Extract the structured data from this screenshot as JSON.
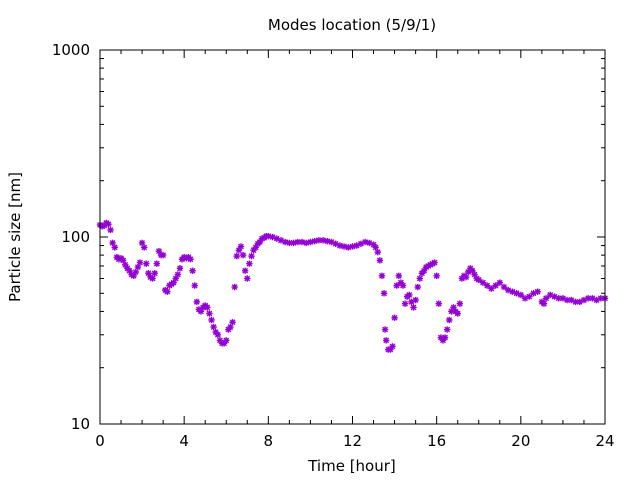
{
  "chart_data": {
    "type": "scatter",
    "title": "Modes location (5/9/1)",
    "xlabel": "Time [hour]",
    "ylabel": "Particle size [nm]",
    "xlim": [
      0,
      24
    ],
    "ylim": [
      10,
      1000
    ],
    "yscale": "log",
    "xticks": [
      0,
      4,
      8,
      12,
      16,
      20,
      24
    ],
    "xtick_labels": [
      "0",
      "4",
      "8",
      "12",
      "16",
      "20",
      "24"
    ],
    "yticks": [
      10,
      100,
      1000
    ],
    "ytick_labels": [
      "10",
      "100",
      "1000"
    ],
    "grid": false,
    "legend": "none",
    "marker": "asterisk",
    "color": "#9400d3",
    "series": [
      {
        "points": [
          [
            0.0,
            116
          ],
          [
            0.1,
            114
          ],
          [
            0.2,
            115
          ],
          [
            0.3,
            119
          ],
          [
            0.4,
            117
          ],
          [
            0.5,
            109
          ],
          [
            0.6,
            93
          ],
          [
            0.7,
            88
          ],
          [
            0.8,
            78
          ],
          [
            0.9,
            76
          ],
          [
            1.0,
            77
          ],
          [
            1.1,
            75
          ],
          [
            1.2,
            71
          ],
          [
            1.3,
            68
          ],
          [
            1.4,
            66
          ],
          [
            1.5,
            63
          ],
          [
            1.6,
            62
          ],
          [
            1.7,
            65
          ],
          [
            1.8,
            69
          ],
          [
            1.9,
            73
          ],
          [
            2.0,
            93
          ],
          [
            2.1,
            88
          ],
          [
            2.2,
            72
          ],
          [
            2.3,
            64
          ],
          [
            2.4,
            61
          ],
          [
            2.5,
            60
          ],
          [
            2.6,
            64
          ],
          [
            2.7,
            72
          ],
          [
            2.8,
            84
          ],
          [
            2.9,
            80
          ],
          [
            3.0,
            80
          ],
          [
            3.1,
            52
          ],
          [
            3.2,
            51
          ],
          [
            3.3,
            55
          ],
          [
            3.4,
            56
          ],
          [
            3.5,
            57
          ],
          [
            3.6,
            60
          ],
          [
            3.7,
            63
          ],
          [
            3.8,
            68
          ],
          [
            3.9,
            76
          ],
          [
            4.0,
            78
          ],
          [
            4.1,
            77
          ],
          [
            4.2,
            78
          ],
          [
            4.3,
            76
          ],
          [
            4.4,
            66
          ],
          [
            4.5,
            55
          ],
          [
            4.6,
            45
          ],
          [
            4.7,
            41
          ],
          [
            4.8,
            40
          ],
          [
            4.9,
            42
          ],
          [
            5.0,
            43
          ],
          [
            5.1,
            42
          ],
          [
            5.2,
            39
          ],
          [
            5.3,
            36
          ],
          [
            5.4,
            33
          ],
          [
            5.5,
            31
          ],
          [
            5.6,
            30
          ],
          [
            5.7,
            28
          ],
          [
            5.8,
            27
          ],
          [
            5.9,
            27
          ],
          [
            6.0,
            28
          ],
          [
            6.1,
            32
          ],
          [
            6.2,
            33
          ],
          [
            6.3,
            35
          ],
          [
            6.4,
            54
          ],
          [
            6.5,
            79
          ],
          [
            6.6,
            85
          ],
          [
            6.7,
            89
          ],
          [
            6.8,
            80
          ],
          [
            6.9,
            66
          ],
          [
            7.0,
            60
          ],
          [
            7.1,
            72
          ],
          [
            7.2,
            79
          ],
          [
            7.3,
            85
          ],
          [
            7.4,
            88
          ],
          [
            7.5,
            92
          ],
          [
            7.6,
            94
          ],
          [
            7.7,
            98
          ],
          [
            7.8,
            99
          ],
          [
            7.9,
            101
          ],
          [
            8.0,
            101
          ],
          [
            8.2,
            100
          ],
          [
            8.4,
            98
          ],
          [
            8.6,
            96
          ],
          [
            8.8,
            94
          ],
          [
            9.0,
            93
          ],
          [
            9.2,
            93
          ],
          [
            9.4,
            94
          ],
          [
            9.6,
            94
          ],
          [
            9.8,
            93
          ],
          [
            10.0,
            94
          ],
          [
            10.2,
            95
          ],
          [
            10.4,
            96
          ],
          [
            10.6,
            96
          ],
          [
            10.8,
            95
          ],
          [
            11.0,
            94
          ],
          [
            11.2,
            92
          ],
          [
            11.4,
            90
          ],
          [
            11.6,
            89
          ],
          [
            11.8,
            88
          ],
          [
            12.0,
            89
          ],
          [
            12.2,
            90
          ],
          [
            12.4,
            92
          ],
          [
            12.6,
            94
          ],
          [
            12.8,
            93
          ],
          [
            13.0,
            91
          ],
          [
            13.1,
            88
          ],
          [
            13.2,
            83
          ],
          [
            13.3,
            75
          ],
          [
            13.4,
            62
          ],
          [
            13.5,
            50
          ],
          [
            13.55,
            32
          ],
          [
            13.6,
            28
          ],
          [
            13.7,
            25
          ],
          [
            13.8,
            25
          ],
          [
            13.9,
            26
          ],
          [
            14.0,
            37
          ],
          [
            14.1,
            55
          ],
          [
            14.2,
            62
          ],
          [
            14.3,
            57
          ],
          [
            14.4,
            55
          ],
          [
            14.5,
            44
          ],
          [
            14.6,
            48
          ],
          [
            14.7,
            49
          ],
          [
            14.8,
            45
          ],
          [
            14.9,
            42
          ],
          [
            15.0,
            46
          ],
          [
            15.1,
            54
          ],
          [
            15.2,
            60
          ],
          [
            15.3,
            64
          ],
          [
            15.4,
            66
          ],
          [
            15.5,
            69
          ],
          [
            15.6,
            70
          ],
          [
            15.7,
            71
          ],
          [
            15.8,
            72
          ],
          [
            15.9,
            73
          ],
          [
            16.0,
            62
          ],
          [
            16.1,
            44
          ],
          [
            16.2,
            29
          ],
          [
            16.3,
            28
          ],
          [
            16.4,
            29
          ],
          [
            16.5,
            32
          ],
          [
            16.6,
            36
          ],
          [
            16.7,
            40
          ],
          [
            16.8,
            42
          ],
          [
            16.9,
            40
          ],
          [
            17.0,
            39
          ],
          [
            17.1,
            44
          ],
          [
            17.2,
            60
          ],
          [
            17.3,
            62
          ],
          [
            17.4,
            61
          ],
          [
            17.5,
            65
          ],
          [
            17.6,
            68
          ],
          [
            17.7,
            66
          ],
          [
            17.8,
            63
          ],
          [
            17.9,
            60
          ],
          [
            18.0,
            59
          ],
          [
            18.2,
            57
          ],
          [
            18.4,
            55
          ],
          [
            18.6,
            53
          ],
          [
            18.8,
            55
          ],
          [
            19.0,
            57
          ],
          [
            19.2,
            54
          ],
          [
            19.4,
            52
          ],
          [
            19.6,
            51
          ],
          [
            19.8,
            50
          ],
          [
            20.0,
            49
          ],
          [
            20.2,
            47
          ],
          [
            20.4,
            48
          ],
          [
            20.6,
            50
          ],
          [
            20.8,
            51
          ],
          [
            21.0,
            45
          ],
          [
            21.1,
            44
          ],
          [
            21.2,
            47
          ],
          [
            21.4,
            49
          ],
          [
            21.6,
            48
          ],
          [
            21.8,
            47
          ],
          [
            22.0,
            47
          ],
          [
            22.2,
            46
          ],
          [
            22.4,
            46
          ],
          [
            22.6,
            45
          ],
          [
            22.8,
            45
          ],
          [
            23.0,
            46
          ],
          [
            23.2,
            47
          ],
          [
            23.4,
            47
          ],
          [
            23.6,
            46
          ],
          [
            23.8,
            47
          ],
          [
            24.0,
            47
          ]
        ]
      }
    ]
  }
}
